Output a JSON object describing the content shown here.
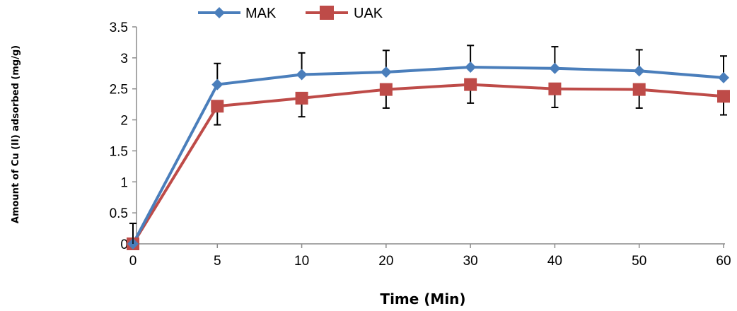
{
  "chart_data": {
    "type": "line",
    "categories": [
      "0",
      "5",
      "10",
      "20",
      "30",
      "40",
      "50",
      "60"
    ],
    "series": [
      {
        "name": "MAK",
        "color": "#4a7ebb",
        "marker": "diamond",
        "values": [
          0,
          2.57,
          2.73,
          2.77,
          2.85,
          2.83,
          2.79,
          2.68
        ],
        "error_upper": [
          0.33,
          0.34,
          0.35,
          0.35,
          0.35,
          0.35,
          0.34,
          0.35
        ]
      },
      {
        "name": "UAK",
        "color": "#be4b48",
        "marker": "square",
        "values": [
          0,
          2.22,
          2.35,
          2.49,
          2.57,
          2.5,
          2.49,
          2.38
        ],
        "error_lower": [
          0,
          0.3,
          0.3,
          0.3,
          0.3,
          0.3,
          0.3,
          0.3
        ]
      }
    ],
    "xlabel": "Time (Min)",
    "ylabel": "Amount of Cu (II) adsorbed (mg/g)",
    "ylim": [
      0,
      3.5
    ],
    "yticks": [
      "0",
      "0.5",
      "1",
      "1.5",
      "2",
      "2.5",
      "3",
      "3.5"
    ],
    "grid": false,
    "legend_position": "top"
  }
}
